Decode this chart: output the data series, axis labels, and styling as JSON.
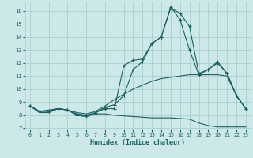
{
  "xlabel": "Humidex (Indice chaleur)",
  "xlim": [
    -0.5,
    23.5
  ],
  "ylim": [
    6.9,
    16.7
  ],
  "yticks": [
    7,
    8,
    9,
    10,
    11,
    12,
    13,
    14,
    15,
    16
  ],
  "xticks": [
    0,
    1,
    2,
    3,
    4,
    5,
    6,
    7,
    8,
    9,
    10,
    11,
    12,
    13,
    14,
    15,
    16,
    17,
    18,
    19,
    20,
    21,
    22,
    23
  ],
  "bg_color": "#cce8e8",
  "grid_color": "#aacfcf",
  "line_color": "#1a6060",
  "curves": [
    {
      "x": [
        0,
        1,
        2,
        3,
        4,
        5,
        6,
        7,
        8,
        9,
        10,
        11,
        12,
        13,
        14,
        15,
        16,
        17,
        18,
        19,
        20,
        21,
        22,
        23
      ],
      "y": [
        8.7,
        8.2,
        8.2,
        8.5,
        8.4,
        8.0,
        7.9,
        8.1,
        8.1,
        8.0,
        7.95,
        7.9,
        7.85,
        7.8,
        7.8,
        7.8,
        7.75,
        7.7,
        7.4,
        7.2,
        7.1,
        7.1,
        7.1,
        7.1
      ],
      "marker": null
    },
    {
      "x": [
        0,
        1,
        2,
        3,
        4,
        5,
        6,
        7,
        8,
        9,
        10,
        11,
        12,
        13,
        14,
        15,
        16,
        17,
        18,
        19,
        20,
        21,
        22,
        23
      ],
      "y": [
        8.7,
        8.3,
        8.4,
        8.5,
        8.4,
        8.2,
        8.1,
        8.3,
        8.7,
        9.2,
        9.6,
        10.0,
        10.3,
        10.6,
        10.8,
        10.9,
        11.0,
        11.1,
        11.1,
        11.1,
        11.1,
        11.0,
        9.5,
        8.5
      ],
      "marker": null
    },
    {
      "x": [
        0,
        1,
        2,
        3,
        4,
        5,
        6,
        7,
        8,
        9,
        10,
        11,
        12,
        13,
        14,
        15,
        16,
        17,
        18,
        19,
        20,
        21,
        22,
        23
      ],
      "y": [
        8.7,
        8.3,
        8.3,
        8.5,
        8.4,
        8.1,
        8.0,
        8.2,
        8.6,
        8.8,
        9.5,
        11.5,
        12.1,
        13.5,
        14.0,
        16.3,
        15.3,
        13.0,
        11.1,
        11.5,
        12.0,
        11.2,
        9.5,
        8.5
      ],
      "marker": "+"
    },
    {
      "x": [
        0,
        1,
        2,
        3,
        4,
        5,
        6,
        7,
        8,
        9,
        10,
        11,
        12,
        13,
        14,
        15,
        16,
        17,
        18,
        19,
        20,
        21,
        22,
        23
      ],
      "y": [
        8.7,
        8.3,
        8.3,
        8.5,
        8.4,
        8.0,
        7.9,
        8.2,
        8.5,
        8.5,
        11.8,
        12.2,
        12.3,
        13.5,
        14.0,
        16.2,
        15.8,
        14.8,
        11.2,
        11.5,
        12.1,
        11.2,
        9.5,
        8.5
      ],
      "marker": "+"
    }
  ]
}
